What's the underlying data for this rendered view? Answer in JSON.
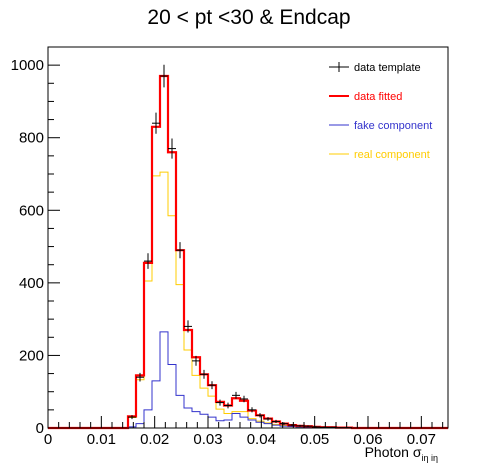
{
  "chart_data": {
    "type": "histogram",
    "title": "20 < pt <30 & Endcap",
    "xlabel": "Photon σ",
    "xlabel_subscript": "iη iη",
    "ylabel": "",
    "xlim": [
      0,
      0.075
    ],
    "ylim": [
      0,
      1050
    ],
    "bin_width": 0.0015,
    "x_ticks": [
      "0",
      "0.01",
      "0.02",
      "0.03",
      "0.04",
      "0.05",
      "0.06",
      "0.07"
    ],
    "x_tick_values": [
      0,
      0.01,
      0.02,
      0.03,
      0.04,
      0.05,
      0.06,
      0.07
    ],
    "y_ticks": [
      "0",
      "200",
      "400",
      "600",
      "800",
      "1000"
    ],
    "y_tick_values": [
      0,
      200,
      400,
      600,
      800,
      1000
    ],
    "legend_position": "top-right",
    "series": [
      {
        "name": "data template",
        "color": "#000000",
        "style": "errorbar",
        "values": [
          0,
          0,
          0,
          0,
          0,
          0,
          0,
          0,
          0,
          0,
          30,
          140,
          460,
          840,
          970,
          770,
          490,
          280,
          185,
          148,
          118,
          70,
          62,
          90,
          80,
          50,
          35,
          25,
          18,
          12,
          8,
          6,
          5,
          3,
          2,
          2,
          1,
          1,
          0,
          0,
          0,
          0,
          0,
          0,
          0,
          0,
          0,
          0,
          0,
          0
        ]
      },
      {
        "name": "data fitted",
        "color": "#ff0000",
        "style": "step",
        "values": [
          0,
          0,
          0,
          0,
          0,
          0,
          0,
          0,
          0,
          0,
          32,
          145,
          455,
          830,
          970,
          760,
          490,
          270,
          195,
          148,
          118,
          72,
          62,
          82,
          75,
          48,
          35,
          26,
          18,
          12,
          8,
          6,
          5,
          3,
          2,
          2,
          1,
          1,
          0,
          0,
          0,
          0,
          0,
          0,
          0,
          0,
          0,
          0,
          0,
          0
        ]
      },
      {
        "name": "fake component",
        "color": "#3333cc",
        "style": "step",
        "values": [
          0,
          0,
          0,
          0,
          0,
          0,
          0,
          0,
          0,
          0,
          3,
          12,
          50,
          130,
          265,
          175,
          90,
          55,
          45,
          38,
          30,
          20,
          22,
          40,
          30,
          22,
          16,
          12,
          8,
          5,
          4,
          3,
          2,
          2,
          1,
          1,
          1,
          0,
          0,
          0,
          0,
          0,
          0,
          0,
          0,
          0,
          0,
          0,
          0,
          0
        ]
      },
      {
        "name": "real component",
        "color": "#ffcc00",
        "style": "step",
        "values": [
          0,
          0,
          0,
          0,
          0,
          0,
          0,
          0,
          0,
          0,
          29,
          133,
          405,
          695,
          705,
          585,
          395,
          215,
          145,
          110,
          88,
          52,
          40,
          45,
          45,
          26,
          19,
          14,
          10,
          7,
          4,
          3,
          3,
          1,
          1,
          1,
          0,
          0,
          0,
          0,
          0,
          0,
          0,
          0,
          0,
          0,
          0,
          0,
          0,
          0
        ]
      }
    ]
  }
}
